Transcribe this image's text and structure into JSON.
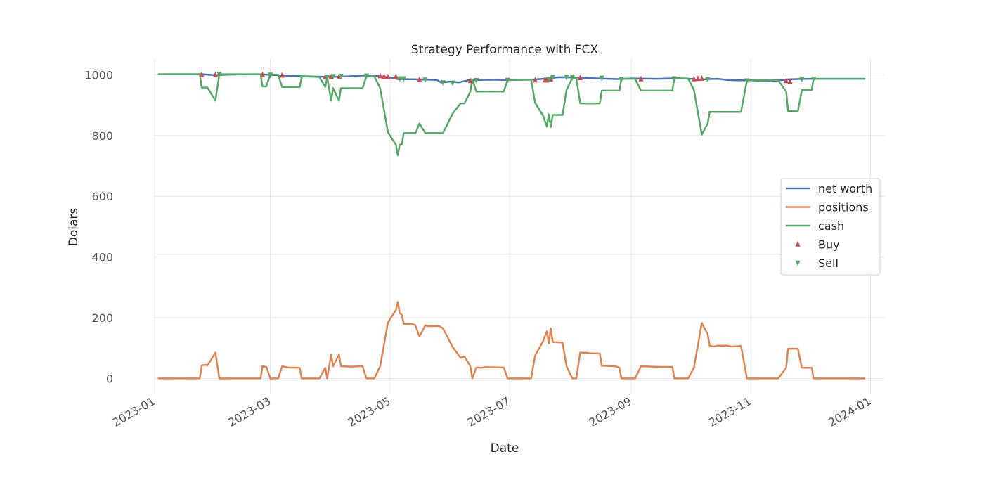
{
  "chart_data": {
    "type": "line",
    "title": "Strategy Performance with FCX",
    "xlabel": "Date",
    "ylabel": "Dolars",
    "x_range": [
      "2023-01-01",
      "2024-01-08"
    ],
    "ylim": [
      -50,
      1052
    ],
    "yticks": [
      0,
      200,
      400,
      600,
      800,
      1000
    ],
    "xticks": [
      {
        "date": "2023-01-01",
        "label": "2023-01"
      },
      {
        "date": "2023-03-01",
        "label": "2023-03"
      },
      {
        "date": "2023-05-01",
        "label": "2023-05"
      },
      {
        "date": "2023-07-01",
        "label": "2023-07"
      },
      {
        "date": "2023-09-01",
        "label": "2023-09"
      },
      {
        "date": "2023-11-01",
        "label": "2023-11"
      },
      {
        "date": "2024-01-01",
        "label": "2024-01"
      }
    ],
    "grid": true,
    "legend_position": "center-right",
    "series": [
      {
        "name": "net worth",
        "color": "#4c72b0",
        "points": [
          [
            "2023-01-03",
            1002
          ],
          [
            "2023-01-25",
            1002
          ],
          [
            "2023-02-01",
            999
          ],
          [
            "2023-02-10",
            1001
          ],
          [
            "2023-02-24",
            1002
          ],
          [
            "2023-03-01",
            1000
          ],
          [
            "2023-03-10",
            997
          ],
          [
            "2023-03-20",
            995
          ],
          [
            "2023-04-01",
            993
          ],
          [
            "2023-04-10",
            995
          ],
          [
            "2023-04-18",
            998
          ],
          [
            "2023-04-26",
            996
          ],
          [
            "2023-05-01",
            991
          ],
          [
            "2023-05-05",
            986
          ],
          [
            "2023-05-15",
            985
          ],
          [
            "2023-05-25",
            983
          ],
          [
            "2023-05-27",
            975
          ],
          [
            "2023-06-01",
            978
          ],
          [
            "2023-06-05",
            975
          ],
          [
            "2023-06-10",
            982
          ],
          [
            "2023-06-20",
            984
          ],
          [
            "2023-07-01",
            983
          ],
          [
            "2023-07-10",
            984
          ],
          [
            "2023-07-15",
            985
          ],
          [
            "2023-07-20",
            988
          ],
          [
            "2023-07-26",
            992
          ],
          [
            "2023-08-05",
            991
          ],
          [
            "2023-08-15",
            988
          ],
          [
            "2023-08-25",
            986
          ],
          [
            "2023-09-01",
            988
          ],
          [
            "2023-09-15",
            987
          ],
          [
            "2023-09-25",
            989
          ],
          [
            "2023-10-01",
            987
          ],
          [
            "2023-10-05",
            984
          ],
          [
            "2023-10-10",
            986
          ],
          [
            "2023-10-15",
            987
          ],
          [
            "2023-10-20",
            983
          ],
          [
            "2023-10-25",
            982
          ],
          [
            "2023-11-01",
            982
          ],
          [
            "2023-11-05",
            980
          ],
          [
            "2023-11-12",
            979
          ],
          [
            "2023-11-20",
            985
          ],
          [
            "2023-12-01",
            987
          ],
          [
            "2023-12-29",
            987
          ]
        ]
      },
      {
        "name": "positions",
        "color": "#dd8452",
        "points": [
          [
            "2023-01-03",
            0
          ],
          [
            "2023-01-24",
            0
          ],
          [
            "2023-01-25",
            43
          ],
          [
            "2023-01-27",
            45
          ],
          [
            "2023-01-28",
            43
          ],
          [
            "2023-02-01",
            85
          ],
          [
            "2023-02-03",
            0
          ],
          [
            "2023-02-24",
            0
          ],
          [
            "2023-02-25",
            40
          ],
          [
            "2023-02-27",
            38
          ],
          [
            "2023-03-01",
            0
          ],
          [
            "2023-03-05",
            0
          ],
          [
            "2023-03-07",
            40
          ],
          [
            "2023-03-10",
            36
          ],
          [
            "2023-03-16",
            35
          ],
          [
            "2023-03-17",
            0
          ],
          [
            "2023-03-26",
            0
          ],
          [
            "2023-03-29",
            35
          ],
          [
            "2023-03-30",
            0
          ],
          [
            "2023-04-01",
            78
          ],
          [
            "2023-04-02",
            40
          ],
          [
            "2023-04-05",
            78
          ],
          [
            "2023-04-06",
            40
          ],
          [
            "2023-04-12",
            39
          ],
          [
            "2023-04-15",
            40
          ],
          [
            "2023-04-16",
            40
          ],
          [
            "2023-04-17",
            40
          ],
          [
            "2023-04-19",
            0
          ],
          [
            "2023-04-23",
            0
          ],
          [
            "2023-04-26",
            40
          ],
          [
            "2023-04-30",
            185
          ],
          [
            "2023-05-04",
            225
          ],
          [
            "2023-05-05",
            252
          ],
          [
            "2023-05-06",
            215
          ],
          [
            "2023-05-07",
            210
          ],
          [
            "2023-05-08",
            180
          ],
          [
            "2023-05-12",
            180
          ],
          [
            "2023-05-14",
            175
          ],
          [
            "2023-05-16",
            138
          ],
          [
            "2023-05-19",
            175
          ],
          [
            "2023-05-20",
            172
          ],
          [
            "2023-05-26",
            173
          ],
          [
            "2023-05-28",
            165
          ],
          [
            "2023-06-02",
            103
          ],
          [
            "2023-06-06",
            68
          ],
          [
            "2023-06-08",
            72
          ],
          [
            "2023-06-11",
            40
          ],
          [
            "2023-06-12",
            0
          ],
          [
            "2023-06-14",
            36
          ],
          [
            "2023-06-17",
            35
          ],
          [
            "2023-06-18",
            37
          ],
          [
            "2023-06-28",
            36
          ],
          [
            "2023-06-30",
            0
          ],
          [
            "2023-07-12",
            0
          ],
          [
            "2023-07-14",
            75
          ],
          [
            "2023-07-18",
            122
          ],
          [
            "2023-07-20",
            155
          ],
          [
            "2023-07-21",
            115
          ],
          [
            "2023-07-22",
            165
          ],
          [
            "2023-07-23",
            120
          ],
          [
            "2023-07-28",
            118
          ],
          [
            "2023-07-30",
            40
          ],
          [
            "2023-08-02",
            0
          ],
          [
            "2023-08-04",
            0
          ],
          [
            "2023-08-06",
            85
          ],
          [
            "2023-08-09",
            85
          ],
          [
            "2023-08-11",
            83
          ],
          [
            "2023-08-16",
            82
          ],
          [
            "2023-08-17",
            42
          ],
          [
            "2023-08-24",
            40
          ],
          [
            "2023-08-26",
            35
          ],
          [
            "2023-08-27",
            0
          ],
          [
            "2023-09-03",
            0
          ],
          [
            "2023-09-06",
            40
          ],
          [
            "2023-09-16",
            38
          ],
          [
            "2023-09-22",
            38
          ],
          [
            "2023-09-23",
            0
          ],
          [
            "2023-09-30",
            0
          ],
          [
            "2023-10-03",
            35
          ],
          [
            "2023-10-07",
            183
          ],
          [
            "2023-10-10",
            145
          ],
          [
            "2023-10-11",
            108
          ],
          [
            "2023-10-13",
            105
          ],
          [
            "2023-10-15",
            108
          ],
          [
            "2023-10-20",
            108
          ],
          [
            "2023-10-22",
            105
          ],
          [
            "2023-10-27",
            107
          ],
          [
            "2023-10-30",
            0
          ],
          [
            "2023-11-15",
            0
          ],
          [
            "2023-11-19",
            35
          ],
          [
            "2023-11-20",
            98
          ],
          [
            "2023-11-25",
            98
          ],
          [
            "2023-11-27",
            35
          ],
          [
            "2023-12-02",
            35
          ],
          [
            "2023-12-03",
            0
          ],
          [
            "2023-12-29",
            0
          ]
        ]
      },
      {
        "name": "cash",
        "color": "#55a868",
        "points": [
          [
            "2023-01-03",
            1002
          ],
          [
            "2023-01-24",
            1002
          ],
          [
            "2023-01-25",
            958
          ],
          [
            "2023-01-28",
            958
          ],
          [
            "2023-02-01",
            915
          ],
          [
            "2023-02-03",
            1002
          ],
          [
            "2023-02-24",
            1002
          ],
          [
            "2023-02-25",
            962
          ],
          [
            "2023-02-27",
            962
          ],
          [
            "2023-03-01",
            1002
          ],
          [
            "2023-03-05",
            1000
          ],
          [
            "2023-03-07",
            960
          ],
          [
            "2023-03-16",
            960
          ],
          [
            "2023-03-17",
            995
          ],
          [
            "2023-03-26",
            993
          ],
          [
            "2023-03-29",
            960
          ],
          [
            "2023-03-30",
            993
          ],
          [
            "2023-04-01",
            915
          ],
          [
            "2023-04-02",
            956
          ],
          [
            "2023-04-05",
            915
          ],
          [
            "2023-04-06",
            956
          ],
          [
            "2023-04-17",
            956
          ],
          [
            "2023-04-19",
            995
          ],
          [
            "2023-04-23",
            995
          ],
          [
            "2023-04-26",
            956
          ],
          [
            "2023-04-30",
            810
          ],
          [
            "2023-05-04",
            770
          ],
          [
            "2023-05-05",
            735
          ],
          [
            "2023-05-06",
            770
          ],
          [
            "2023-05-07",
            770
          ],
          [
            "2023-05-08",
            808
          ],
          [
            "2023-05-14",
            808
          ],
          [
            "2023-05-16",
            840
          ],
          [
            "2023-05-19",
            808
          ],
          [
            "2023-05-28",
            808
          ],
          [
            "2023-06-02",
            873
          ],
          [
            "2023-06-06",
            906
          ],
          [
            "2023-06-08",
            906
          ],
          [
            "2023-06-11",
            945
          ],
          [
            "2023-06-12",
            985
          ],
          [
            "2023-06-14",
            945
          ],
          [
            "2023-06-28",
            945
          ],
          [
            "2023-06-30",
            984
          ],
          [
            "2023-07-12",
            984
          ],
          [
            "2023-07-14",
            908
          ],
          [
            "2023-07-18",
            866
          ],
          [
            "2023-07-20",
            830
          ],
          [
            "2023-07-21",
            870
          ],
          [
            "2023-07-22",
            828
          ],
          [
            "2023-07-23",
            868
          ],
          [
            "2023-07-28",
            868
          ],
          [
            "2023-07-30",
            950
          ],
          [
            "2023-08-02",
            990
          ],
          [
            "2023-08-04",
            990
          ],
          [
            "2023-08-06",
            906
          ],
          [
            "2023-08-16",
            906
          ],
          [
            "2023-08-17",
            948
          ],
          [
            "2023-08-26",
            948
          ],
          [
            "2023-08-27",
            987
          ],
          [
            "2023-09-03",
            987
          ],
          [
            "2023-09-06",
            948
          ],
          [
            "2023-09-22",
            948
          ],
          [
            "2023-09-23",
            988
          ],
          [
            "2023-09-30",
            988
          ],
          [
            "2023-10-03",
            950
          ],
          [
            "2023-10-07",
            803
          ],
          [
            "2023-10-10",
            840
          ],
          [
            "2023-10-11",
            878
          ],
          [
            "2023-10-27",
            878
          ],
          [
            "2023-10-30",
            982
          ],
          [
            "2023-11-15",
            982
          ],
          [
            "2023-11-19",
            945
          ],
          [
            "2023-11-20",
            880
          ],
          [
            "2023-11-25",
            880
          ],
          [
            "2023-11-27",
            950
          ],
          [
            "2023-12-02",
            950
          ],
          [
            "2023-12-03",
            987
          ],
          [
            "2023-12-29",
            987
          ]
        ]
      }
    ],
    "markers": [
      {
        "name": "Buy",
        "color": "#c44e52",
        "shape": "triangle-up",
        "points": [
          [
            "2023-01-25",
            1000
          ],
          [
            "2023-02-01",
            1000
          ],
          [
            "2023-02-25",
            1000
          ],
          [
            "2023-03-07",
            998
          ],
          [
            "2023-03-29",
            993
          ],
          [
            "2023-04-01",
            993
          ],
          [
            "2023-04-05",
            995
          ],
          [
            "2023-04-26",
            996
          ],
          [
            "2023-04-28",
            993
          ],
          [
            "2023-04-30",
            993
          ],
          [
            "2023-05-04",
            993
          ],
          [
            "2023-05-16",
            984
          ],
          [
            "2023-06-11",
            980
          ],
          [
            "2023-07-14",
            982
          ],
          [
            "2023-07-19",
            982
          ],
          [
            "2023-07-20",
            982
          ],
          [
            "2023-07-22",
            985
          ],
          [
            "2023-08-06",
            990
          ],
          [
            "2023-09-06",
            986
          ],
          [
            "2023-10-03",
            986
          ],
          [
            "2023-10-05",
            987
          ],
          [
            "2023-10-07",
            988
          ],
          [
            "2023-11-19",
            980
          ],
          [
            "2023-11-21",
            978
          ]
        ]
      },
      {
        "name": "Sell",
        "color": "#55a868",
        "shape": "triangle-down",
        "points": [
          [
            "2023-02-03",
            1002
          ],
          [
            "2023-03-01",
            1000
          ],
          [
            "2023-03-17",
            993
          ],
          [
            "2023-03-30",
            993
          ],
          [
            "2023-04-02",
            995
          ],
          [
            "2023-04-06",
            996
          ],
          [
            "2023-04-19",
            997
          ],
          [
            "2023-05-06",
            988
          ],
          [
            "2023-05-08",
            988
          ],
          [
            "2023-05-19",
            984
          ],
          [
            "2023-05-28",
            975
          ],
          [
            "2023-06-02",
            974
          ],
          [
            "2023-06-14",
            982
          ],
          [
            "2023-06-30",
            983
          ],
          [
            "2023-07-21",
            985
          ],
          [
            "2023-07-23",
            993
          ],
          [
            "2023-07-30",
            993
          ],
          [
            "2023-08-02",
            992
          ],
          [
            "2023-08-17",
            990
          ],
          [
            "2023-08-27",
            986
          ],
          [
            "2023-09-23",
            988
          ],
          [
            "2023-10-10",
            985
          ],
          [
            "2023-10-30",
            981
          ],
          [
            "2023-11-27",
            986
          ],
          [
            "2023-12-03",
            987
          ]
        ]
      }
    ]
  }
}
